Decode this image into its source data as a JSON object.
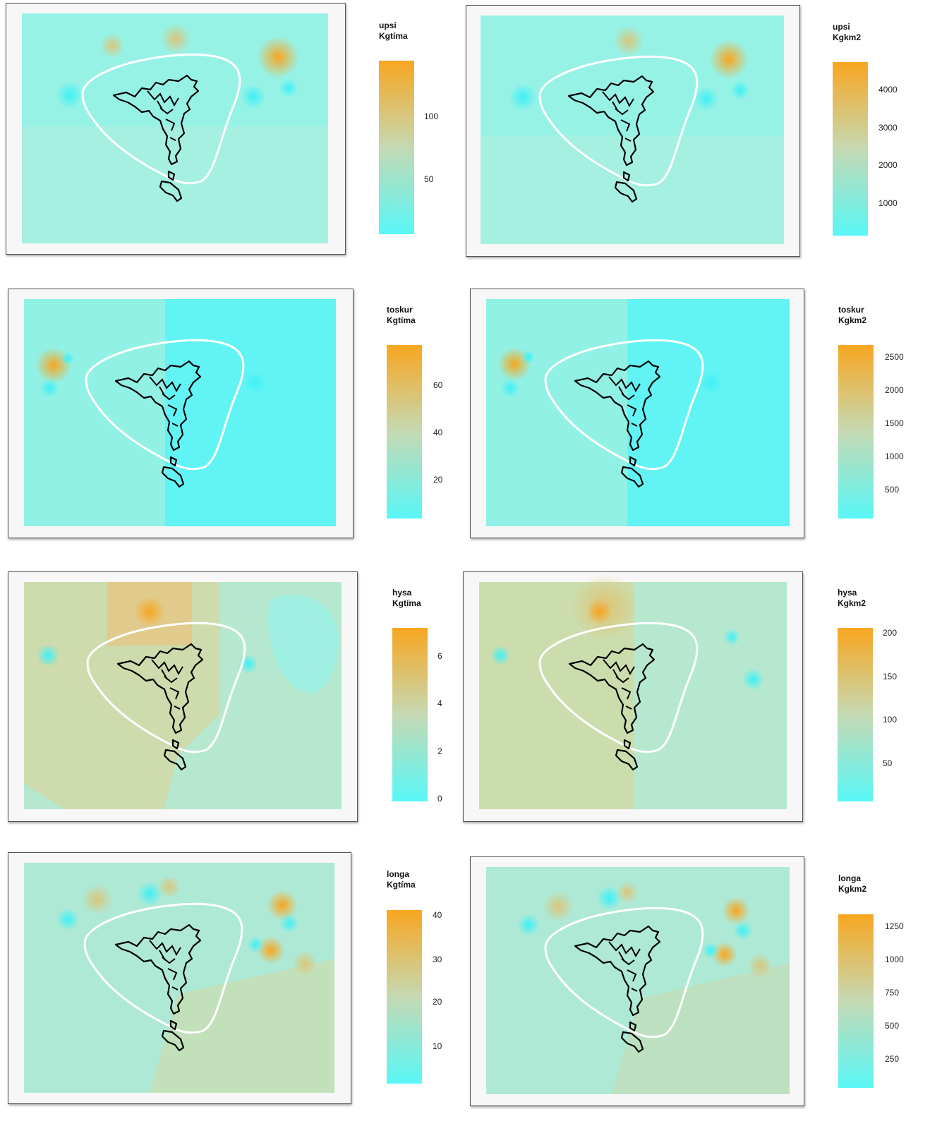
{
  "colors": {
    "low": "#59f7f7",
    "mid": "#c5d9b3",
    "high": "#f8a620",
    "island": "#000000",
    "boundary": "#ffffff"
  },
  "panels": [
    {
      "id": "upsi-kgtima",
      "legend_title": "upsi\nKgtíma",
      "ticks": [
        "100",
        "50"
      ],
      "tick_values": [
        100,
        50
      ],
      "min": 15,
      "max": 150
    },
    {
      "id": "upsi-kgkm2",
      "legend_title": "upsi\nKgkm2",
      "ticks": [
        "4000",
        "3000",
        "2000",
        "1000"
      ],
      "tick_values": [
        4000,
        3000,
        2000,
        1000
      ],
      "min": 200,
      "max": 4650
    },
    {
      "id": "toskur-kgtima",
      "legend_title": "toskur\nKgtíma",
      "ticks": [
        "60",
        "40",
        "20"
      ],
      "tick_values": [
        60,
        40,
        20
      ],
      "min": 4,
      "max": 77
    },
    {
      "id": "toskur-kgkm2",
      "legend_title": "toskur\nKgkm2",
      "ticks": [
        "2500",
        "2000",
        "1500",
        "1000",
        "500"
      ],
      "tick_values": [
        2500,
        2000,
        1500,
        1000,
        500
      ],
      "min": 30,
      "max": 2680
    },
    {
      "id": "hysa-kgtima",
      "legend_title": "hysa\nKgtíma",
      "ticks": [
        "6",
        "4",
        "2",
        "0"
      ],
      "tick_values": [
        6,
        4,
        2,
        0
      ],
      "min": -0.1,
      "max": 7.2
    },
    {
      "id": "hysa-kgkm2",
      "legend_title": "hysa\nKgkm2",
      "ticks": [
        "200",
        "150",
        "100",
        "50"
      ],
      "tick_values": [
        200,
        150,
        100,
        50
      ],
      "min": 5,
      "max": 205
    },
    {
      "id": "longa-kgtima",
      "legend_title": "longa\nKgtíma",
      "ticks": [
        "40",
        "30",
        "20",
        "10"
      ],
      "tick_values": [
        40,
        30,
        20,
        10
      ],
      "min": 1,
      "max": 41
    },
    {
      "id": "longa-kgkm2",
      "legend_title": "longa\nKgkm2",
      "ticks": [
        "1250",
        "1000",
        "750",
        "500",
        "250"
      ],
      "tick_values": [
        1250,
        1000,
        750,
        500,
        250
      ],
      "min": 5,
      "max": 1330
    }
  ]
}
